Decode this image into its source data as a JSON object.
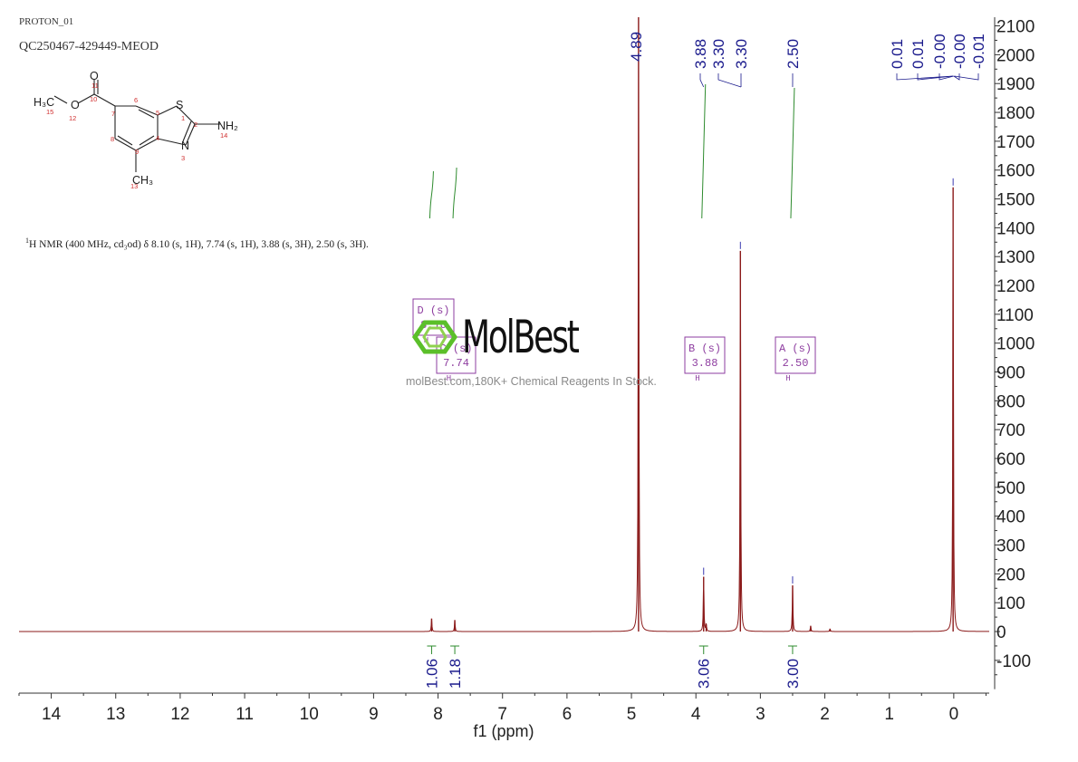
{
  "header": {
    "experiment": "PROTON_01",
    "sample": "QC250467-429449-MEOD"
  },
  "nmr_description": {
    "sup": "1",
    "text": "H NMR (400 MHz, cd₃od) δ 8.10 (s, 1H), 7.74 (s, 1H), 3.88 (s, 3H), 2.50 (s, 3H)."
  },
  "structure": {
    "atoms": [
      {
        "label": "O",
        "num": "11"
      },
      {
        "label": "O",
        "num": "12"
      },
      {
        "label": "S",
        "num": "1"
      },
      {
        "label": "N",
        "num": "3"
      },
      {
        "label": "NH₂",
        "num": "14"
      },
      {
        "label": "H₃C",
        "num": "15"
      },
      {
        "label": "CH₃",
        "num": "13"
      }
    ],
    "ring_numbers": [
      "10",
      "7",
      "6",
      "5",
      "2",
      "8",
      "9",
      "4"
    ]
  },
  "watermark": {
    "brand": "MolBest",
    "tagline": "molBest.com,180K+ Chemical Reagents In Stock."
  },
  "colors": {
    "spectrum": "#8b1a1a",
    "integral": "#2e8b2e",
    "peak_labels": "#1a1a8c",
    "multiplet": "#8e3ea0",
    "axis": "#333333"
  },
  "chart_data": {
    "type": "line",
    "xlabel": "f1 (ppm)",
    "x_reversed": true,
    "xlim": [
      14.5,
      -0.55
    ],
    "ylim": [
      -200,
      2130
    ],
    "x_ticks": [
      14,
      13,
      12,
      11,
      10,
      9,
      8,
      7,
      6,
      5,
      4,
      3,
      2,
      1,
      0
    ],
    "y_ticks": [
      2100,
      2000,
      1900,
      1800,
      1700,
      1600,
      1500,
      1400,
      1300,
      1200,
      1100,
      1000,
      900,
      800,
      700,
      600,
      500,
      400,
      300,
      200,
      100,
      0,
      -100
    ],
    "peaks": [
      {
        "ppm": 8.1,
        "height": 45
      },
      {
        "ppm": 7.74,
        "height": 40
      },
      {
        "ppm": 4.89,
        "height": 2130
      },
      {
        "ppm": 3.88,
        "height": 190
      },
      {
        "ppm": 3.84,
        "height": 25
      },
      {
        "ppm": 3.31,
        "height": 1320
      },
      {
        "ppm": 2.5,
        "height": 160
      },
      {
        "ppm": 2.22,
        "height": 20
      },
      {
        "ppm": 1.92,
        "height": 10
      },
      {
        "ppm": 0.01,
        "height": 1540
      }
    ],
    "peak_labels": [
      {
        "text": "4.89",
        "ppm": 4.89
      },
      {
        "text": "3.88",
        "ppm": 3.88
      },
      {
        "text": "3.30",
        "ppm": 3.3
      },
      {
        "text": "3.30",
        "ppm": 3.3
      },
      {
        "text": "2.50",
        "ppm": 2.5
      },
      {
        "text": "0.01",
        "ppm": 0.01
      },
      {
        "text": "0.01",
        "ppm": 0.01
      },
      {
        "text": "-0.00",
        "ppm": 0.0
      },
      {
        "text": "-0.00",
        "ppm": 0.0
      },
      {
        "text": "-0.01",
        "ppm": -0.01
      }
    ],
    "integrals": [
      {
        "value": "1.06",
        "ppm": 8.1
      },
      {
        "value": "1.18",
        "ppm": 7.74
      },
      {
        "value": "3.06",
        "ppm": 3.88
      },
      {
        "value": "3.00",
        "ppm": 2.5
      }
    ],
    "multiplets": [
      {
        "id": "D",
        "mult": "s",
        "shift": "8.10",
        "nucleus": "H"
      },
      {
        "id": "C",
        "mult": "s",
        "shift": "7.74",
        "nucleus": "H"
      },
      {
        "id": "B",
        "mult": "s",
        "shift": "3.88",
        "nucleus": "H"
      },
      {
        "id": "A",
        "mult": "s",
        "shift": "2.50",
        "nucleus": "H"
      }
    ]
  }
}
